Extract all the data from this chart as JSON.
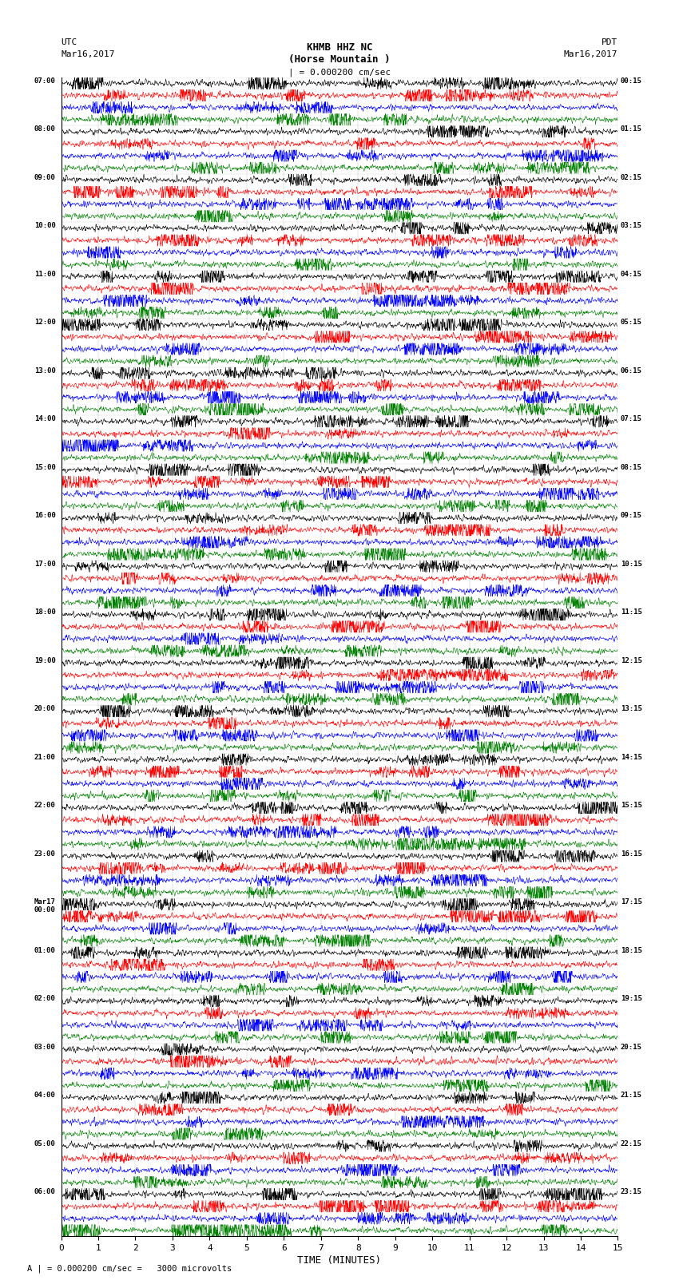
{
  "title_line1": "KHMB HHZ NC",
  "title_line2": "(Horse Mountain )",
  "scale_label": "| = 0.000200 cm/sec",
  "utc_label1": "UTC",
  "utc_label2": "Mar16,2017",
  "pdt_label1": "PDT",
  "pdt_label2": "Mar16,2017",
  "footer_label": "A | = 0.000200 cm/sec =   3000 microvolts",
  "xlabel": "TIME (MINUTES)",
  "left_times": [
    "07:00",
    "08:00",
    "09:00",
    "10:00",
    "11:00",
    "12:00",
    "13:00",
    "14:00",
    "15:00",
    "16:00",
    "17:00",
    "18:00",
    "19:00",
    "20:00",
    "21:00",
    "22:00",
    "23:00",
    "Mar17\n00:00",
    "01:00",
    "02:00",
    "03:00",
    "04:00",
    "05:00",
    "06:00"
  ],
  "right_times": [
    "00:15",
    "01:15",
    "02:15",
    "03:15",
    "04:15",
    "05:15",
    "06:15",
    "07:15",
    "08:15",
    "09:15",
    "10:15",
    "11:15",
    "12:15",
    "13:15",
    "14:15",
    "15:15",
    "16:15",
    "17:15",
    "18:15",
    "19:15",
    "20:15",
    "21:15",
    "22:15",
    "23:15"
  ],
  "n_rows": 24,
  "traces_per_row": 4,
  "colors": [
    "black",
    "red",
    "blue",
    "green"
  ],
  "bg_color": "white",
  "n_points": 2000,
  "x_min": 0,
  "x_max": 15,
  "x_ticks": [
    0,
    1,
    2,
    3,
    4,
    5,
    6,
    7,
    8,
    9,
    10,
    11,
    12,
    13,
    14,
    15
  ],
  "figsize": [
    8.5,
    16.13
  ],
  "dpi": 100
}
